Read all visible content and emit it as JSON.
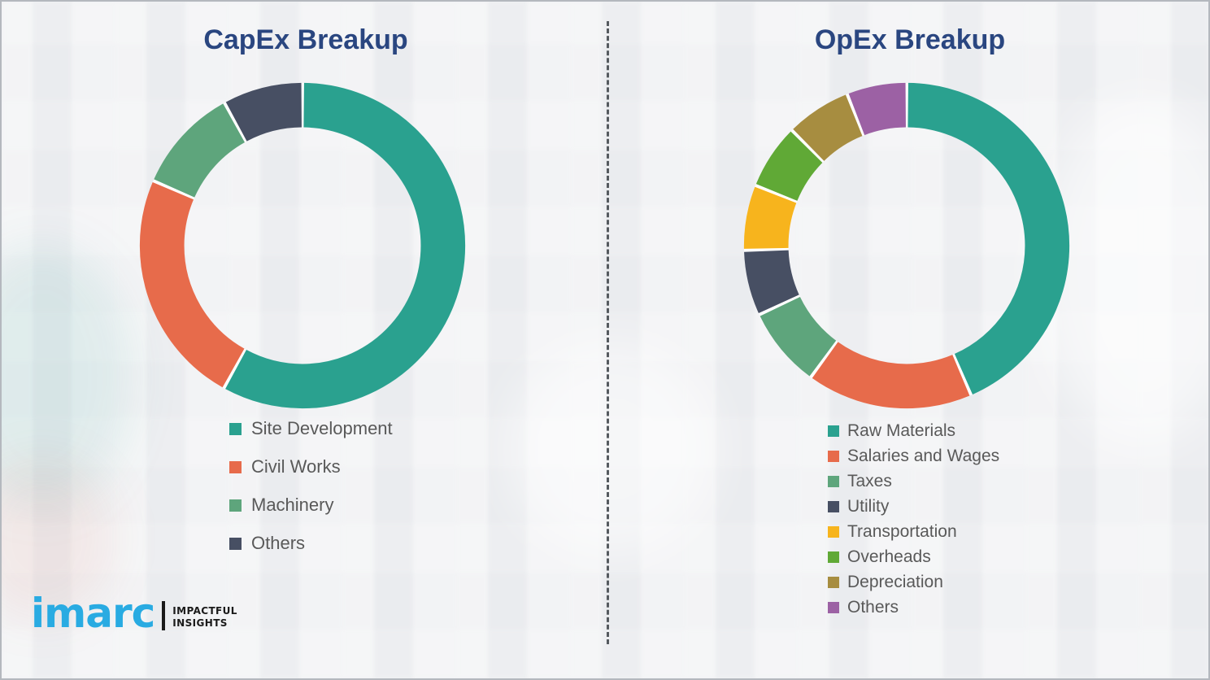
{
  "page": {
    "background_color": "#f0f1f3",
    "border_color": "#b4b8be",
    "divider_style": "vertical-dashed",
    "divider_color": "#555a5f",
    "title_color": "#2a4680",
    "legend_text_color": "#595959"
  },
  "chart_data": [
    {
      "type": "pie",
      "subtype": "donut",
      "title": "CapEx Breakup",
      "labels": [
        "Site Development",
        "Civil Works",
        "Machinery",
        "Others"
      ],
      "values": [
        58,
        23.5,
        10.5,
        8
      ],
      "colors": [
        "#2aa18f",
        "#e76b4b",
        "#5ea57c",
        "#474f63"
      ],
      "start_angle_deg": 0,
      "direction": "clockwise",
      "legend_position": "below-left",
      "data_labels_shown": false
    },
    {
      "type": "pie",
      "subtype": "donut",
      "title": "OpEx Breakup",
      "labels": [
        "Raw Materials",
        "Salaries and Wages",
        "Taxes",
        "Utility",
        "Transportation",
        "Overheads",
        "Depreciation",
        "Others"
      ],
      "values": [
        43.5,
        16.5,
        8,
        6.5,
        6.5,
        6.5,
        6.5,
        6
      ],
      "colors": [
        "#2aa18f",
        "#e76b4b",
        "#5ea57c",
        "#474f63",
        "#f7b41d",
        "#60a936",
        "#a78d40",
        "#9c61a4"
      ],
      "start_angle_deg": 0,
      "direction": "clockwise",
      "legend_position": "below-left",
      "data_labels_shown": false
    }
  ],
  "logo": {
    "wordmark": "imarc",
    "wordmark_color": "#29abe2",
    "tagline_line1": "IMPACTFUL",
    "tagline_line2": "INSIGHTS"
  }
}
